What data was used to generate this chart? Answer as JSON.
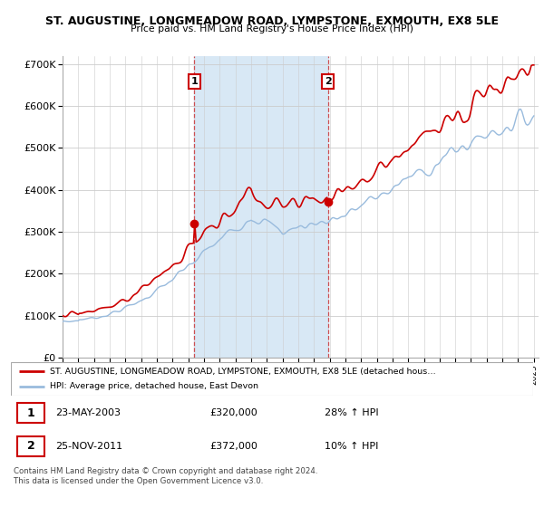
{
  "title": "ST. AUGUSTINE, LONGMEADOW ROAD, LYMPSTONE, EXMOUTH, EX8 5LE",
  "subtitle": "Price paid vs. HM Land Registry's House Price Index (HPI)",
  "ylim": [
    0,
    720000
  ],
  "yticks": [
    0,
    100000,
    200000,
    300000,
    400000,
    500000,
    600000,
    700000
  ],
  "ytick_labels": [
    "£0",
    "£100K",
    "£200K",
    "£300K",
    "£400K",
    "£500K",
    "£600K",
    "£700K"
  ],
  "x_start_year": 1995,
  "x_end_year": 2025,
  "line_color_hpi": "#99bbdd",
  "line_color_property": "#cc0000",
  "marker_color": "#cc0000",
  "sale1_year": 2003.39,
  "sale1_price": 320000,
  "sale2_year": 2011.9,
  "sale2_price": 372000,
  "legend_property": "ST. AUGUSTINE, LONGMEADOW ROAD, LYMPSTONE, EXMOUTH, EX8 5LE (detached hous…",
  "legend_hpi": "HPI: Average price, detached house, East Devon",
  "table_row1_num": "1",
  "table_row1_date": "23-MAY-2003",
  "table_row1_price": "£320,000",
  "table_row1_hpi": "28% ↑ HPI",
  "table_row2_num": "2",
  "table_row2_date": "25-NOV-2011",
  "table_row2_price": "£372,000",
  "table_row2_hpi": "10% ↑ HPI",
  "footer": "Contains HM Land Registry data © Crown copyright and database right 2024.\nThis data is licensed under the Open Government Licence v3.0.",
  "bg_color": "#ffffff",
  "plot_bg_color": "#ffffff",
  "grid_color": "#cccccc",
  "shade_color": "#d8e8f5"
}
